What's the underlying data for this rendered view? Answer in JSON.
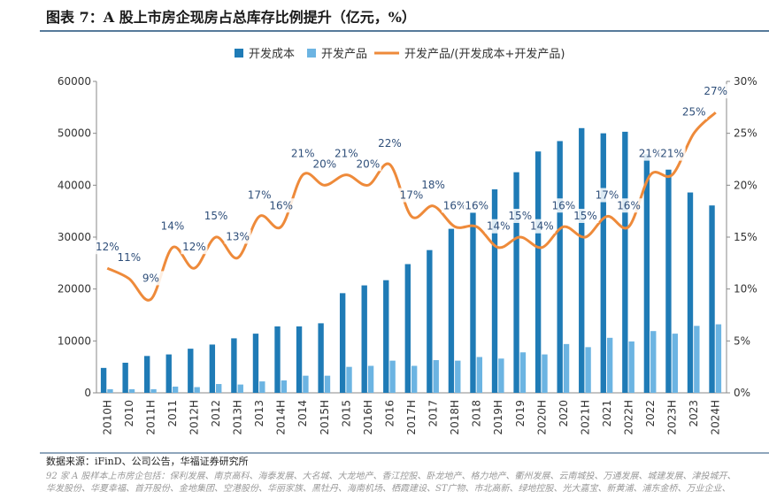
{
  "chart_data": {
    "type": "bar_line",
    "title": "图表 7：A 股上市房企现房占总库存比例提升（亿元，%）",
    "source": "数据来源：iFinD、公司公告，华福证券研究所",
    "notes": [
      "92 家 A 股样本上市房企包括：保利发展、南京高科、海泰发展、大名城、大龙地产、香江控股、卧龙地产、格力地产、衢州发展、云南城投、万通发展、城建发展、津投城开、",
      "华发股份、华夏幸福、首开股份、金地集团、空港股份、华丽家族、黑牡丹、海南机场、栖霞建设、ST广物、市北高新、绿地控股、光大嘉宝、新黄浦、浦东金桥、万业企业、"
    ],
    "categories": [
      "2010H",
      "2010",
      "2011H",
      "2011",
      "2012H",
      "2012",
      "2013H",
      "2013",
      "2014H",
      "2014",
      "2015H",
      "2015",
      "2016H",
      "2016",
      "2017H",
      "2017",
      "2018H",
      "2018",
      "2019H",
      "2019",
      "2020H",
      "2020",
      "2021H",
      "2021",
      "2022H",
      "2022",
      "2023H",
      "2023",
      "2024H"
    ],
    "series": [
      {
        "name": "开发成本",
        "color": "#1f7bb6",
        "type": "bar",
        "values": [
          4800,
          5800,
          7100,
          7400,
          8500,
          9300,
          10500,
          11400,
          12800,
          12800,
          13400,
          19200,
          20700,
          21700,
          24800,
          27500,
          31600,
          34700,
          39200,
          42500,
          46500,
          48500,
          51000,
          50000,
          50300,
          46000,
          43000,
          38600,
          36100
        ]
      },
      {
        "name": "开发产品",
        "color": "#6cb4e2",
        "type": "bar",
        "values": [
          700,
          700,
          700,
          1200,
          1100,
          1700,
          1600,
          2200,
          2400,
          3300,
          3300,
          5000,
          5200,
          6200,
          5200,
          6300,
          6200,
          6900,
          6600,
          7800,
          7400,
          9400,
          8800,
          10600,
          9900,
          11900,
          11400,
          12900,
          13200
        ]
      },
      {
        "name": "开发产品/(开发成本+开发产品)",
        "color": "#ee8a3a",
        "type": "line",
        "axis": "y2",
        "values": [
          12,
          11,
          9,
          14,
          12,
          15,
          13,
          17,
          16,
          21,
          20,
          21,
          20,
          22,
          17,
          18,
          16,
          16,
          14,
          15,
          14,
          16,
          15,
          17,
          16,
          21,
          21,
          25,
          27
        ],
        "value_labels": [
          "12%",
          "11%",
          "9%",
          "14%",
          "12%",
          "15%",
          "13%",
          "17%",
          "16%",
          "21%",
          "20%",
          "21%",
          "20%",
          "22%",
          "17%",
          "18%",
          "16%",
          "16%",
          "14%",
          "15%",
          "14%",
          "16%",
          "15%",
          "17%",
          "16%",
          "21%",
          "21%",
          "25%",
          "27%"
        ]
      }
    ],
    "ylim": [
      0,
      60000
    ],
    "yticks": [
      0,
      10000,
      20000,
      30000,
      40000,
      50000,
      60000
    ],
    "y2lim": [
      0,
      30
    ],
    "y2ticks": [
      {
        "value": 0,
        "label": "0%"
      },
      {
        "value": 5,
        "label": "5%"
      },
      {
        "value": 10,
        "label": "10%"
      },
      {
        "value": 15,
        "label": "15%"
      },
      {
        "value": 20,
        "label": "20%"
      },
      {
        "value": 25,
        "label": "25%"
      },
      {
        "value": 30,
        "label": "30%"
      }
    ],
    "legend": "top"
  }
}
